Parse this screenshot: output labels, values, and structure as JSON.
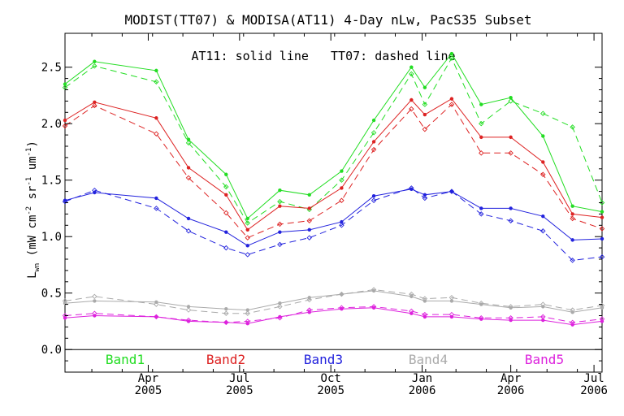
{
  "chart_data": {
    "type": "line",
    "title": "MODIST(TT07) & MODISA(AT11) 4-Day nLw, PacS35 Subset",
    "annotation": "AT11: solid line   TT07: dashed line",
    "ylabel_main": "L",
    "ylabel_sub": "wn",
    "ylabel_units_pre": "(mW cm",
    "ylabel_units_mid1": " sr",
    "ylabel_units_mid2": " um",
    "ylabel_units_post": ")",
    "ylabel_exp_cm": "-2",
    "ylabel_exp_sr": "-1",
    "ylabel_exp_um": "-1",
    "ylim": [
      -0.2,
      2.8
    ],
    "xlim": [
      0,
      20
    ],
    "y_ticks": [
      {
        "value": 0.0,
        "label": "0.0"
      },
      {
        "value": 0.5,
        "label": "0.5"
      },
      {
        "value": 1.0,
        "label": "1.0"
      },
      {
        "value": 1.5,
        "label": "1.5"
      },
      {
        "value": 2.0,
        "label": "2.0"
      },
      {
        "value": 2.5,
        "label": "2.5"
      }
    ],
    "x_ticks": [
      {
        "value": 3.1,
        "month": "Apr",
        "year": "2005"
      },
      {
        "value": 6.5,
        "month": "Jul",
        "year": "2005"
      },
      {
        "value": 9.9,
        "month": "Oct",
        "year": "2005"
      },
      {
        "value": 13.3,
        "month": "Jan",
        "year": "2006"
      },
      {
        "value": 16.6,
        "month": "Apr",
        "year": "2006"
      },
      {
        "value": 19.7,
        "month": "Jul",
        "year": "2006"
      }
    ],
    "zero_line": 0.0,
    "series": [
      {
        "name": "Band1",
        "color": "#22dd22",
        "style": "solid",
        "x": [
          0.0,
          1.1,
          3.4,
          4.6,
          6.0,
          6.8,
          8.0,
          9.1,
          10.3,
          11.5,
          12.9,
          13.4,
          14.4,
          15.5,
          16.6,
          17.8,
          18.9,
          20.0
        ],
        "y": [
          2.35,
          2.55,
          2.47,
          1.86,
          1.55,
          1.16,
          1.41,
          1.37,
          1.58,
          2.03,
          2.5,
          2.32,
          2.62,
          2.17,
          2.23,
          1.89,
          1.27,
          1.22
        ]
      },
      {
        "name": "Band1",
        "color": "#22dd22",
        "style": "dashed",
        "x": [
          0.0,
          1.1,
          3.4,
          4.6,
          6.0,
          6.8,
          8.0,
          9.1,
          10.3,
          11.5,
          12.9,
          13.4,
          14.4,
          15.5,
          16.6,
          17.8,
          18.9,
          20.0
        ],
        "y": [
          2.32,
          2.51,
          2.37,
          1.83,
          1.44,
          1.12,
          1.31,
          1.24,
          1.5,
          1.92,
          2.44,
          2.17,
          2.58,
          2.0,
          2.2,
          2.09,
          1.97,
          1.3
        ]
      },
      {
        "name": "Band2",
        "color": "#dd2222",
        "style": "solid",
        "x": [
          0.0,
          1.1,
          3.4,
          4.6,
          6.0,
          6.8,
          8.0,
          9.1,
          10.3,
          11.5,
          12.9,
          13.4,
          14.4,
          15.5,
          16.6,
          17.8,
          18.9,
          20.0
        ],
        "y": [
          2.03,
          2.19,
          2.05,
          1.61,
          1.37,
          1.06,
          1.27,
          1.25,
          1.43,
          1.84,
          2.21,
          2.08,
          2.22,
          1.88,
          1.88,
          1.66,
          1.2,
          1.17
        ]
      },
      {
        "name": "Band2",
        "color": "#dd2222",
        "style": "dashed",
        "x": [
          0.0,
          1.1,
          3.4,
          4.6,
          6.0,
          6.8,
          8.0,
          9.1,
          10.3,
          11.5,
          12.9,
          13.4,
          14.4,
          15.5,
          16.6,
          17.8,
          18.9,
          20.0
        ],
        "y": [
          1.98,
          2.16,
          1.91,
          1.52,
          1.21,
          0.99,
          1.11,
          1.14,
          1.32,
          1.77,
          2.13,
          1.95,
          2.17,
          1.74,
          1.74,
          1.55,
          1.16,
          1.07
        ]
      },
      {
        "name": "Band3",
        "color": "#2222dd",
        "style": "solid",
        "x": [
          0.0,
          1.1,
          3.4,
          4.6,
          6.0,
          6.8,
          8.0,
          9.1,
          10.3,
          11.5,
          12.9,
          13.4,
          14.4,
          15.5,
          16.6,
          17.8,
          18.9,
          20.0
        ],
        "y": [
          1.32,
          1.39,
          1.34,
          1.16,
          1.04,
          0.92,
          1.04,
          1.06,
          1.13,
          1.36,
          1.42,
          1.37,
          1.4,
          1.25,
          1.25,
          1.18,
          0.97,
          0.98
        ]
      },
      {
        "name": "Band3",
        "color": "#2222dd",
        "style": "dashed",
        "x": [
          0.0,
          1.1,
          3.4,
          4.6,
          6.0,
          6.8,
          8.0,
          9.1,
          10.3,
          11.5,
          12.9,
          13.4,
          14.4,
          15.5,
          16.6,
          17.8,
          18.9,
          20.0
        ],
        "y": [
          1.31,
          1.41,
          1.25,
          1.05,
          0.9,
          0.84,
          0.93,
          0.99,
          1.1,
          1.32,
          1.43,
          1.34,
          1.4,
          1.2,
          1.14,
          1.05,
          0.79,
          0.82
        ]
      },
      {
        "name": "Band4",
        "color": "#aaaaaa",
        "style": "solid",
        "x": [
          0.0,
          1.1,
          3.4,
          4.6,
          6.0,
          6.8,
          8.0,
          9.1,
          10.3,
          11.5,
          12.9,
          13.4,
          14.4,
          15.5,
          16.6,
          17.8,
          18.9,
          20.0
        ],
        "y": [
          0.41,
          0.43,
          0.42,
          0.38,
          0.36,
          0.35,
          0.41,
          0.46,
          0.49,
          0.52,
          0.47,
          0.43,
          0.43,
          0.4,
          0.37,
          0.38,
          0.33,
          0.37
        ]
      },
      {
        "name": "Band4",
        "color": "#aaaaaa",
        "style": "dashed",
        "x": [
          0.0,
          1.1,
          3.4,
          4.6,
          6.0,
          6.8,
          8.0,
          9.1,
          10.3,
          11.5,
          12.9,
          13.4,
          14.4,
          15.5,
          16.6,
          17.8,
          18.9,
          20.0
        ],
        "y": [
          0.43,
          0.47,
          0.4,
          0.35,
          0.32,
          0.32,
          0.38,
          0.44,
          0.49,
          0.53,
          0.49,
          0.45,
          0.46,
          0.41,
          0.38,
          0.4,
          0.35,
          0.39
        ]
      },
      {
        "name": "Band5",
        "color": "#dd22dd",
        "style": "solid",
        "x": [
          0.0,
          1.1,
          3.4,
          4.6,
          6.0,
          6.8,
          8.0,
          9.1,
          10.3,
          11.5,
          12.9,
          13.4,
          14.4,
          15.5,
          16.6,
          17.8,
          18.9,
          20.0
        ],
        "y": [
          0.28,
          0.3,
          0.29,
          0.25,
          0.24,
          0.23,
          0.29,
          0.33,
          0.36,
          0.37,
          0.32,
          0.29,
          0.29,
          0.27,
          0.26,
          0.26,
          0.22,
          0.25
        ]
      },
      {
        "name": "Band5",
        "color": "#dd22dd",
        "style": "dashed",
        "x": [
          0.0,
          1.1,
          3.4,
          4.6,
          6.0,
          6.8,
          8.0,
          9.1,
          10.3,
          11.5,
          12.9,
          13.4,
          14.4,
          15.5,
          16.6,
          17.8,
          18.9,
          20.0
        ],
        "y": [
          0.3,
          0.32,
          0.29,
          0.26,
          0.24,
          0.25,
          0.28,
          0.35,
          0.37,
          0.38,
          0.34,
          0.31,
          0.31,
          0.28,
          0.28,
          0.29,
          0.24,
          0.27
        ]
      }
    ],
    "legend": [
      {
        "label": "Band1",
        "color": "#22dd22"
      },
      {
        "label": "Band2",
        "color": "#dd2222"
      },
      {
        "label": "Band3",
        "color": "#2222dd"
      },
      {
        "label": "Band4",
        "color": "#aaaaaa"
      },
      {
        "label": "Band5",
        "color": "#dd22dd"
      }
    ],
    "legend_placement": "bottom-inside",
    "grid": false
  }
}
